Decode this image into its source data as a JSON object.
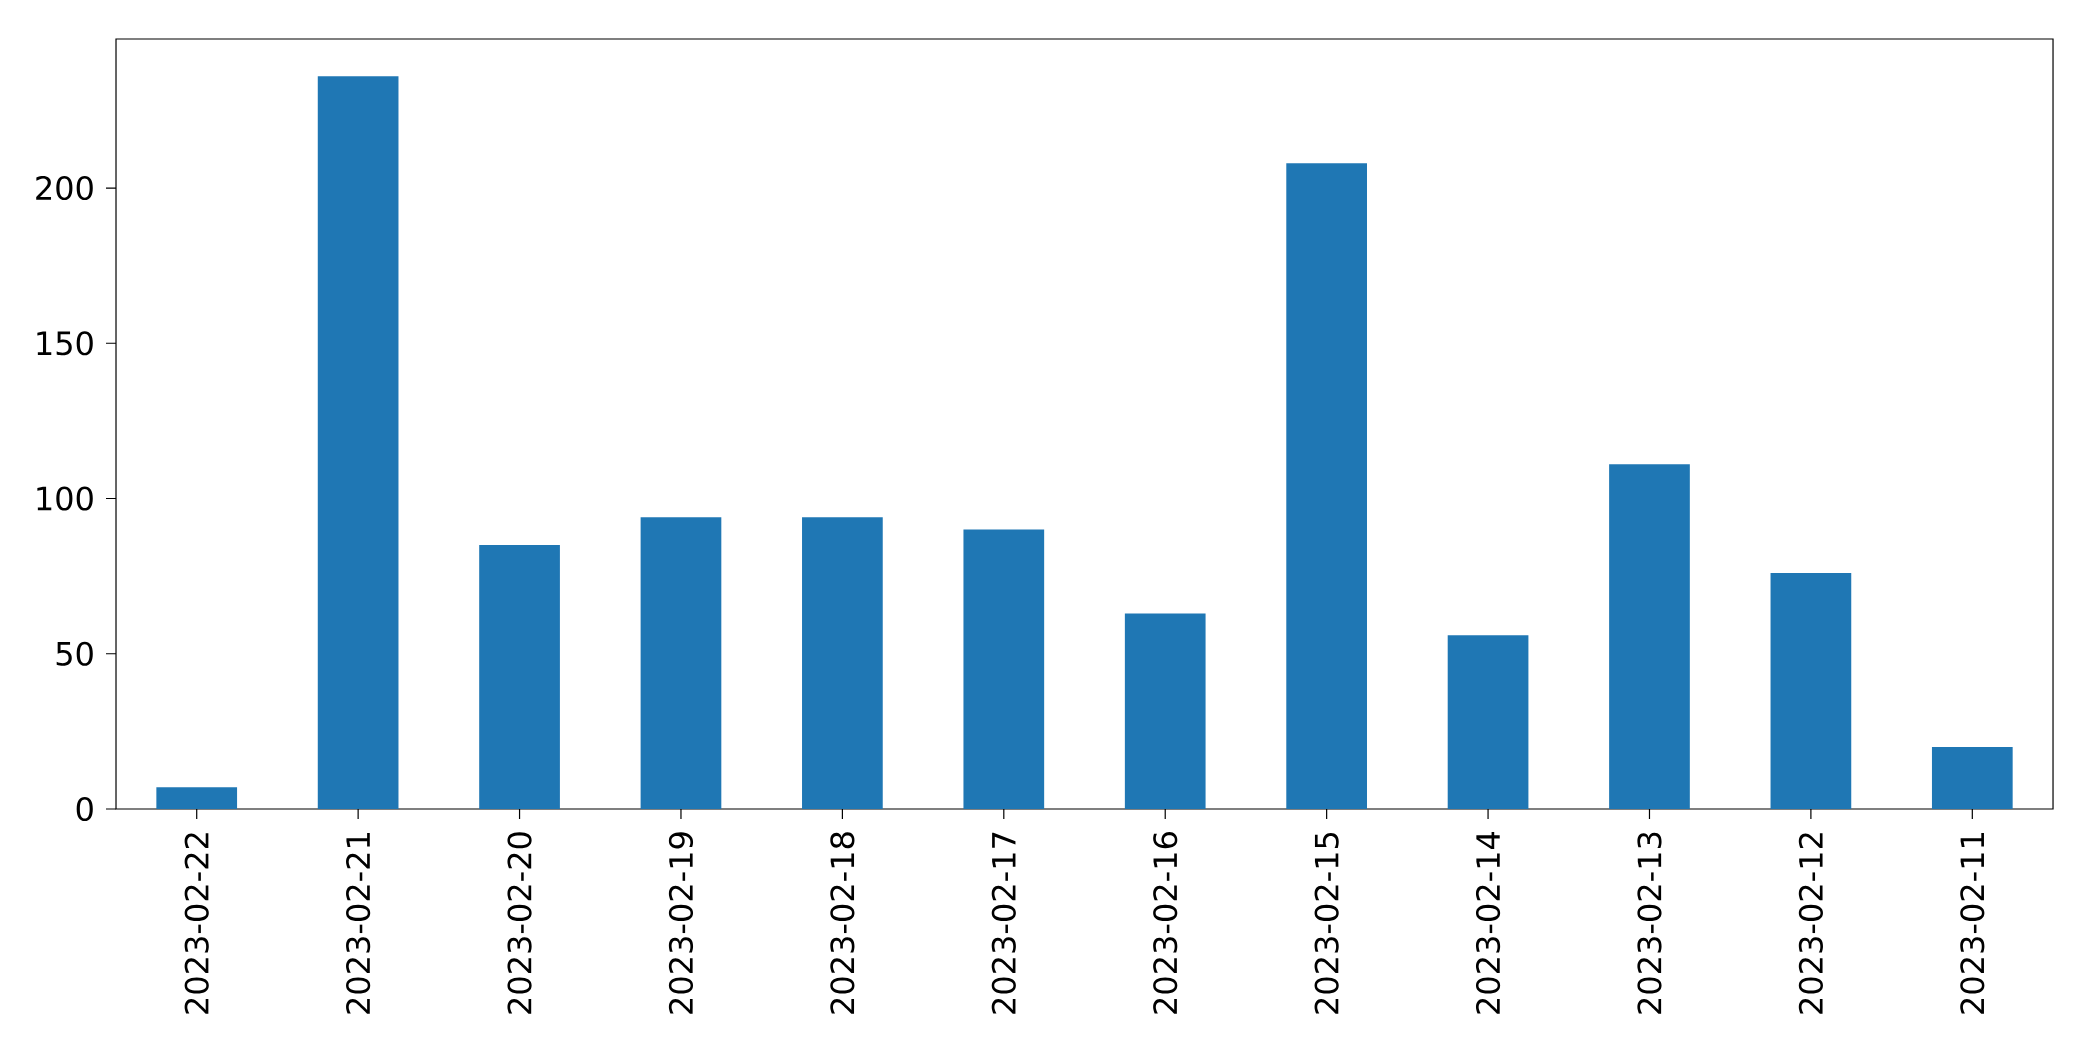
{
  "chart_data": {
    "type": "bar",
    "categories": [
      "2023-02-22",
      "2023-02-21",
      "2023-02-20",
      "2023-02-19",
      "2023-02-18",
      "2023-02-17",
      "2023-02-16",
      "2023-02-15",
      "2023-02-14",
      "2023-02-13",
      "2023-02-12",
      "2023-02-11"
    ],
    "values": [
      7,
      236,
      85,
      94,
      94,
      90,
      63,
      208,
      56,
      111,
      76,
      20
    ],
    "color": "#1f77b4",
    "ylim": [
      0,
      248
    ],
    "yticks": [
      0,
      50,
      100,
      150,
      200
    ]
  }
}
